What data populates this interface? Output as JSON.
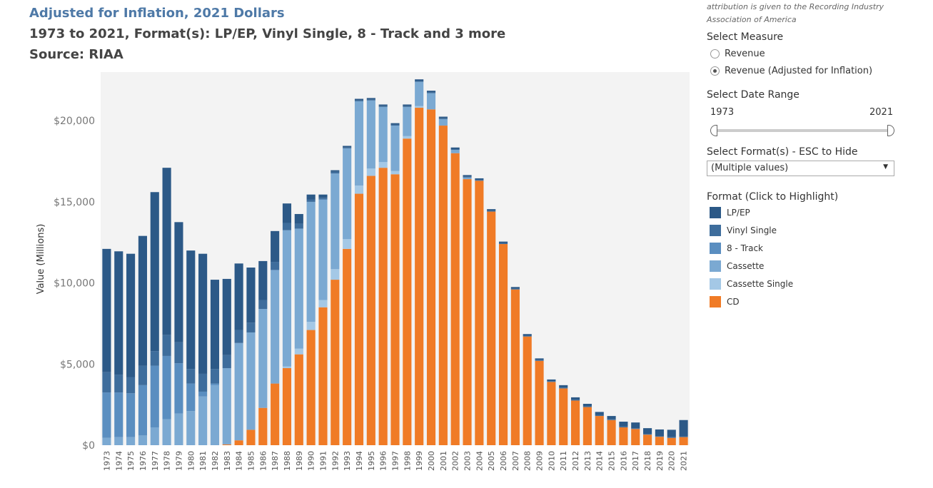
{
  "header": {
    "title": "Adjusted for Inflation, 2021 Dollars",
    "subtitle": "1973 to 2021, Format(s): LP/EP, Vinyl Single, 8 - Track and 3 more",
    "source": "Source: RIAA"
  },
  "sidebar": {
    "attribution": "attribution is given to the Recording Industry Association of America",
    "measure_label": "Select Measure",
    "measure_options": [
      "Revenue",
      "Revenue (Adjusted for Inflation)"
    ],
    "measure_selected": "Revenue (Adjusted for Inflation)",
    "date_label": "Select Date Range",
    "date_start": "1973",
    "date_end": "2021",
    "format_label": "Select Format(s) - ESC to Hide",
    "format_value": "(Multiple values)",
    "legend_label": "Format (Click to Highlight)"
  },
  "colors": {
    "LP/EP": "#2c5987",
    "Vinyl Single": "#3e6d9c",
    "8 - Track": "#5a8ec0",
    "Cassette": "#7ba9d2",
    "Cassette Single": "#a4c8e6",
    "CD": "#f07b26"
  },
  "chart_data": {
    "type": "bar",
    "stacked": true,
    "ylabel": "Value (Millions)",
    "ylim": [
      0,
      23000
    ],
    "yticks": [
      "$0",
      "$5,000",
      "$10,000",
      "$15,000",
      "$20,000"
    ],
    "categories": [
      "1973",
      "1974",
      "1975",
      "1976",
      "1977",
      "1978",
      "1979",
      "1980",
      "1981",
      "1982",
      "1983",
      "1984",
      "1985",
      "1986",
      "1987",
      "1988",
      "1989",
      "1990",
      "1991",
      "1992",
      "1993",
      "1994",
      "1995",
      "1996",
      "1997",
      "1998",
      "1999",
      "2000",
      "2001",
      "2002",
      "2003",
      "2004",
      "2005",
      "2006",
      "2007",
      "2008",
      "2009",
      "2010",
      "2011",
      "2012",
      "2013",
      "2014",
      "2015",
      "2016",
      "2017",
      "2018",
      "2019",
      "2020",
      "2021"
    ],
    "series": [
      {
        "name": "CD",
        "values": [
          0,
          0,
          0,
          0,
          0,
          0,
          0,
          0,
          0,
          0,
          50,
          300,
          950,
          2300,
          3800,
          4750,
          5600,
          7100,
          8500,
          10200,
          12100,
          15500,
          16600,
          17100,
          16700,
          18900,
          20800,
          20700,
          19700,
          18000,
          16400,
          16300,
          14400,
          12400,
          9600,
          6700,
          5200,
          3900,
          3500,
          2750,
          2350,
          1800,
          1550,
          1100,
          1000,
          650,
          520,
          450,
          500
        ]
      },
      {
        "name": "Cassette Single",
        "values": [
          0,
          0,
          0,
          0,
          0,
          0,
          0,
          0,
          0,
          0,
          0,
          0,
          0,
          0,
          0,
          100,
          350,
          500,
          450,
          650,
          600,
          500,
          450,
          350,
          200,
          150,
          100,
          0,
          0,
          0,
          0,
          0,
          0,
          0,
          0,
          0,
          0,
          0,
          0,
          0,
          0,
          0,
          0,
          0,
          0,
          0,
          0,
          0,
          0
        ]
      },
      {
        "name": "Cassette",
        "values": [
          450,
          500,
          500,
          600,
          1100,
          1600,
          1950,
          2100,
          3000,
          3700,
          4700,
          6000,
          6000,
          6100,
          7000,
          8400,
          7400,
          7400,
          6200,
          5900,
          5600,
          5200,
          4200,
          3400,
          2800,
          1800,
          1500,
          1000,
          400,
          200,
          100,
          0,
          0,
          0,
          0,
          0,
          0,
          0,
          0,
          0,
          0,
          0,
          0,
          0,
          0,
          0,
          0,
          0,
          0
        ]
      },
      {
        "name": "8 - Track",
        "values": [
          2800,
          2750,
          2700,
          3100,
          3800,
          3900,
          3100,
          1700,
          300,
          100,
          0,
          0,
          0,
          0,
          0,
          0,
          0,
          0,
          0,
          0,
          0,
          0,
          0,
          0,
          0,
          0,
          0,
          0,
          0,
          0,
          0,
          0,
          0,
          0,
          0,
          0,
          0,
          0,
          0,
          0,
          0,
          0,
          0,
          0,
          0,
          0,
          0,
          0,
          0
        ]
      },
      {
        "name": "Vinyl Single",
        "values": [
          1250,
          1100,
          1000,
          1200,
          900,
          1300,
          1300,
          900,
          1100,
          900,
          800,
          800,
          600,
          550,
          500,
          450,
          300,
          150,
          100,
          100,
          50,
          50,
          50,
          50,
          50,
          50,
          50,
          50,
          50,
          50,
          50,
          50,
          50,
          50,
          50,
          50,
          50,
          50,
          50,
          50,
          50,
          50,
          50,
          50,
          50,
          50,
          50,
          50,
          50
        ]
      },
      {
        "name": "LP/EP",
        "values": [
          7600,
          7600,
          7600,
          8000,
          9800,
          10300,
          7400,
          7300,
          7400,
          5500,
          4700,
          4100,
          3400,
          2400,
          1900,
          1200,
          600,
          300,
          200,
          100,
          100,
          100,
          100,
          100,
          100,
          100,
          100,
          100,
          100,
          100,
          100,
          100,
          100,
          100,
          100,
          100,
          100,
          100,
          150,
          150,
          150,
          200,
          200,
          300,
          350,
          350,
          400,
          450,
          1000
        ]
      }
    ]
  }
}
